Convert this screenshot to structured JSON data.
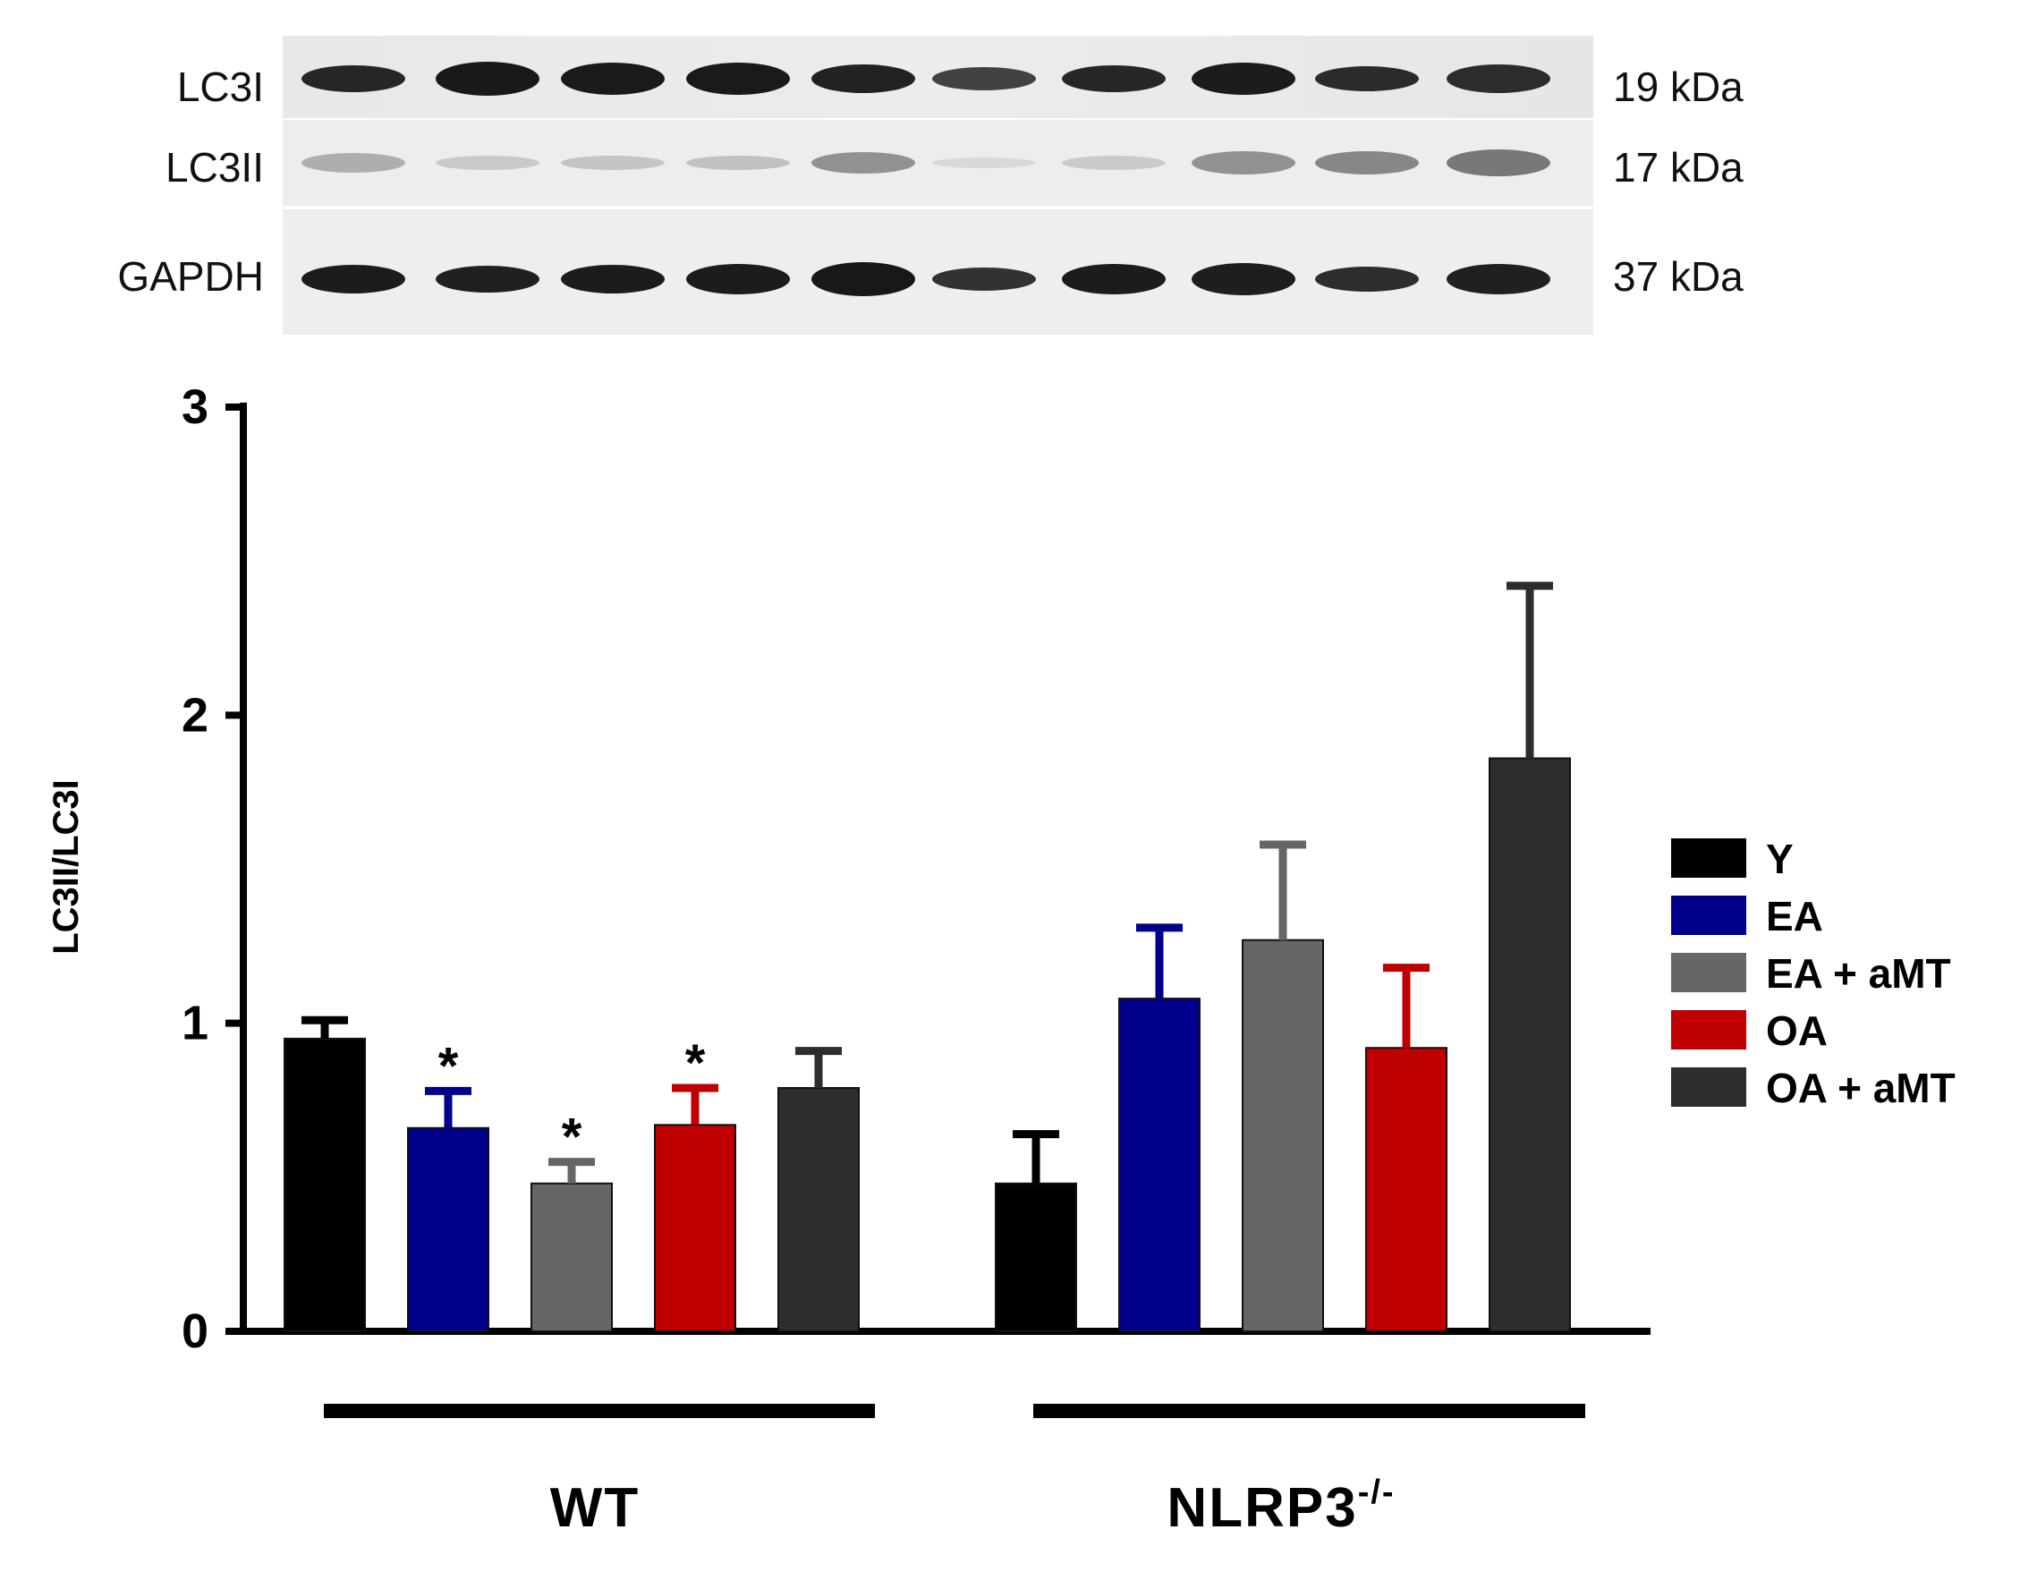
{
  "blot": {
    "rows": [
      {
        "label": "LC3I",
        "size": "19 kDa"
      },
      {
        "label": "LC3II",
        "size": "17 kDa"
      },
      {
        "label": "GAPDH",
        "size": "37 kDa"
      }
    ]
  },
  "chart_data": {
    "type": "bar",
    "ylabel": "LC3II/LC3I",
    "ylim": [
      0,
      3
    ],
    "yticks": [
      "0",
      "1",
      "2",
      "3"
    ],
    "groups": [
      {
        "label": "WT",
        "superscript": ""
      },
      {
        "label": "NLRP3",
        "superscript": "-/-"
      }
    ],
    "series": [
      {
        "name": "Y",
        "color": "#000000",
        "values": [
          0.95,
          0.48
        ],
        "errors": [
          0.06,
          0.16
        ],
        "sig": [
          "",
          ""
        ]
      },
      {
        "name": "EA",
        "color": "#00008b",
        "values": [
          0.66,
          1.08
        ],
        "errors": [
          0.12,
          0.23
        ],
        "sig": [
          "*",
          ""
        ]
      },
      {
        "name": "EA + aMT",
        "color": "#666666",
        "values": [
          0.48,
          1.27
        ],
        "errors": [
          0.07,
          0.31
        ],
        "sig": [
          "*",
          ""
        ]
      },
      {
        "name": "OA",
        "color": "#c00000",
        "values": [
          0.67,
          0.92
        ],
        "errors": [
          0.12,
          0.26
        ],
        "sig": [
          "*",
          ""
        ]
      },
      {
        "name": "OA + aMT",
        "color": "#2d2d2d",
        "values": [
          0.79,
          1.86
        ],
        "errors": [
          0.12,
          0.56
        ],
        "sig": [
          "",
          ""
        ]
      }
    ],
    "grid": false,
    "legend": "right"
  }
}
